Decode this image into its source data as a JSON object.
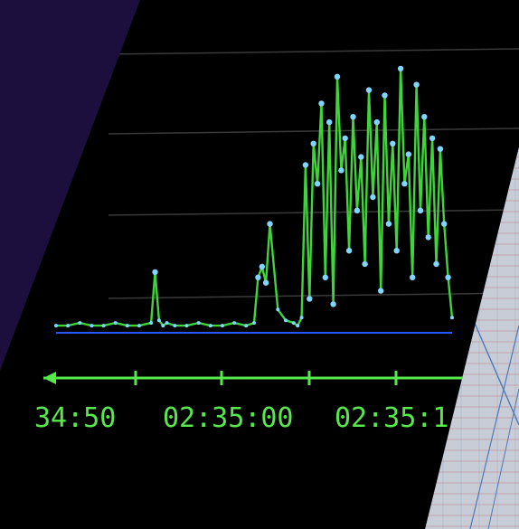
{
  "colors": {
    "background": "#1c0f3e",
    "screen": "#000000",
    "trace_green": "#3fd43a",
    "point_cyan": "#7fd6ff",
    "baseline": "#2b57ff",
    "axis_green": "#57e84c",
    "gridline": "#3a3a3a"
  },
  "monitor": {
    "time_labels": [
      "34:50",
      "02:35:00",
      "02:35:1"
    ]
  },
  "chart_data": {
    "type": "line",
    "title": "",
    "xlabel": "",
    "ylabel": "",
    "grid": true,
    "legend": "none",
    "x_ticks": [
      "34:50",
      "02:35:00",
      "02:35:1"
    ],
    "ylim": [
      0,
      100
    ],
    "x_range": [
      0,
      100
    ],
    "series": [
      {
        "x": [
          0,
          3,
          6,
          9,
          12,
          15,
          18,
          21,
          24,
          25,
          26,
          27,
          28,
          30,
          33,
          36,
          39,
          42,
          45,
          48,
          50,
          51,
          52,
          53,
          54,
          56,
          58,
          60,
          61,
          62,
          63,
          64,
          65,
          66,
          67,
          68,
          69,
          70,
          71,
          72,
          73,
          74,
          75,
          76,
          77,
          78,
          79,
          80,
          81,
          82,
          83,
          84,
          85,
          86,
          87,
          88,
          89,
          90,
          91,
          92,
          93,
          94,
          95,
          96,
          97,
          98,
          99,
          100
        ],
        "values": [
          2,
          2,
          3,
          2,
          2,
          3,
          2,
          2,
          3,
          22,
          4,
          2,
          3,
          2,
          2,
          3,
          2,
          2,
          3,
          2,
          3,
          20,
          24,
          18,
          40,
          8,
          4,
          3,
          2,
          5,
          62,
          12,
          70,
          55,
          85,
          20,
          78,
          10,
          95,
          60,
          72,
          30,
          80,
          45,
          65,
          25,
          90,
          50,
          78,
          15,
          88,
          40,
          70,
          30,
          98,
          55,
          66,
          20,
          92,
          45,
          80,
          35,
          72,
          25,
          68,
          40,
          20,
          5
        ]
      }
    ]
  }
}
